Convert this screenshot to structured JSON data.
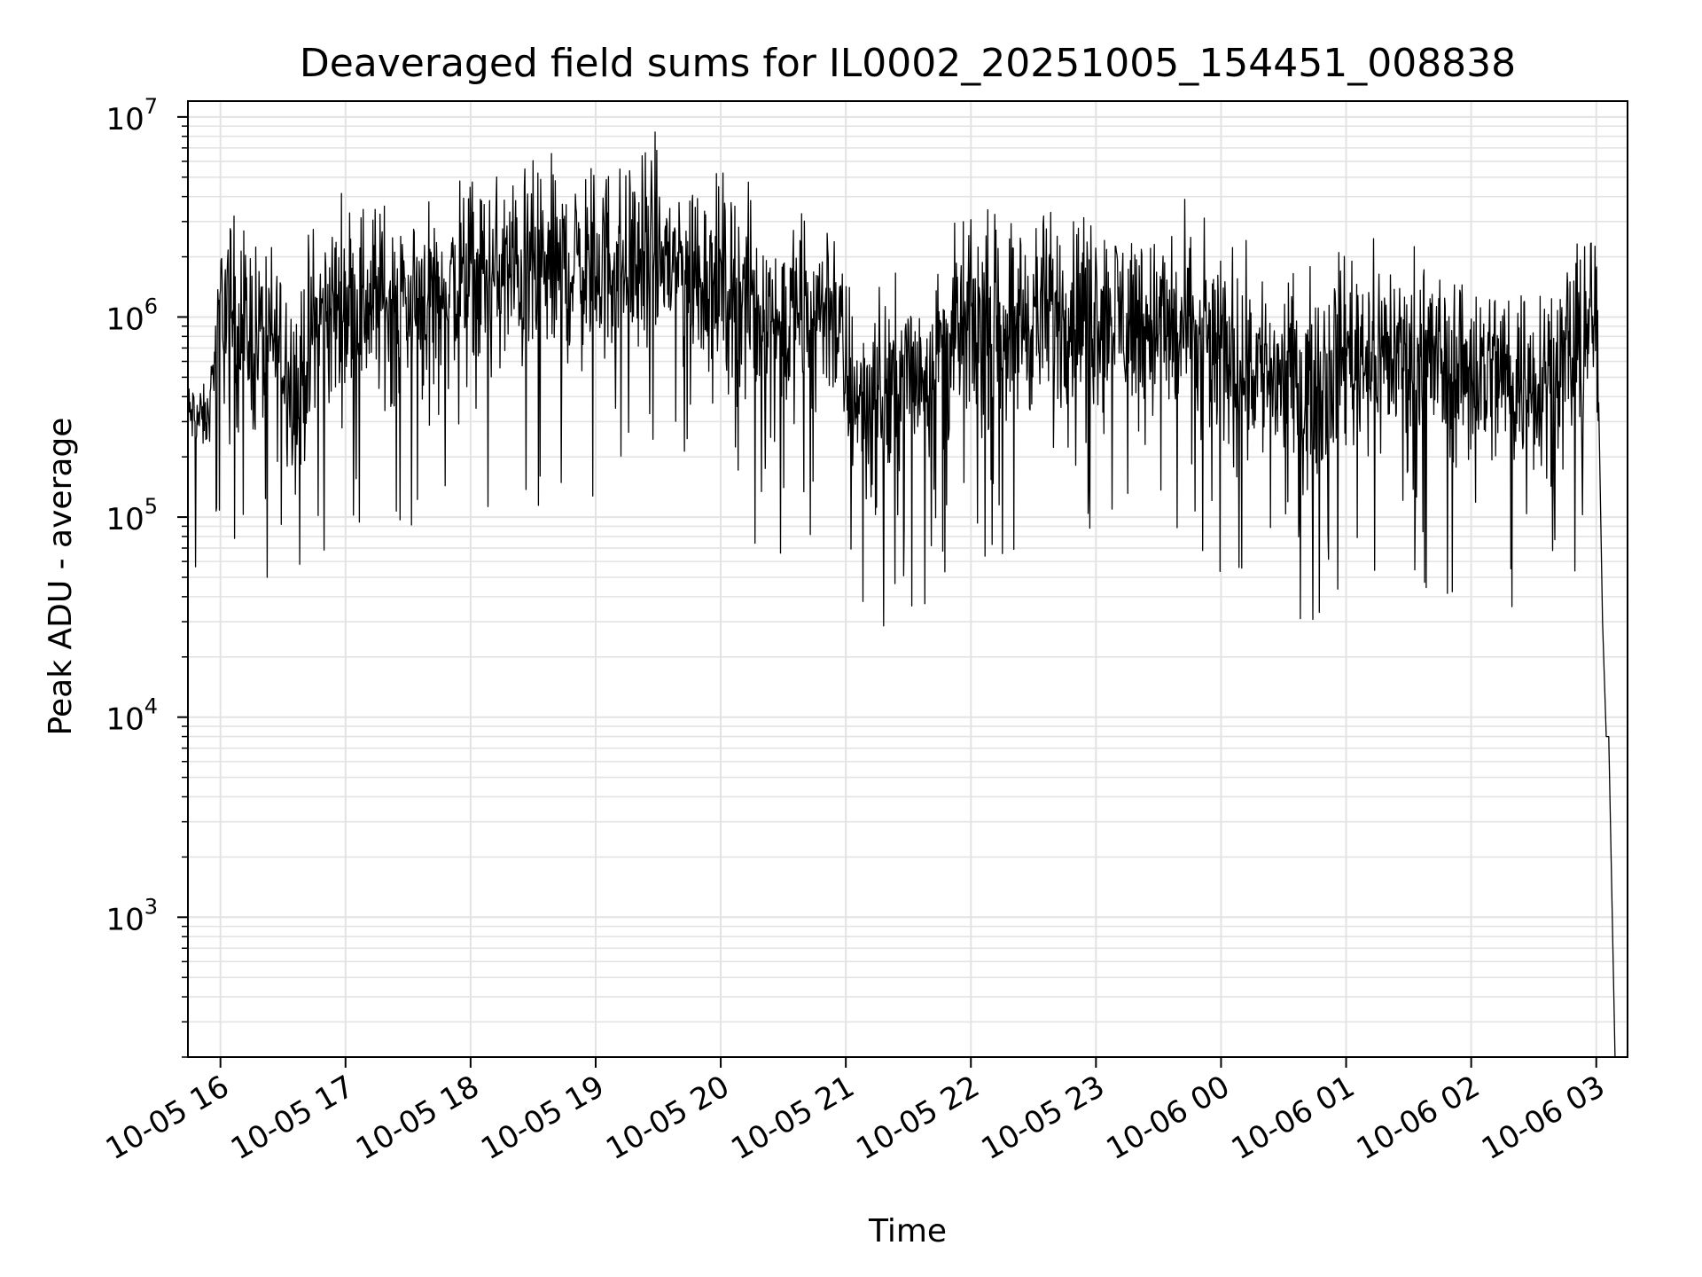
{
  "chart_data": {
    "type": "line",
    "title": "Deaveraged field sums for IL0002_20251005_154451_008838",
    "xlabel": "Time",
    "ylabel": "Peak ADU - average",
    "yscale": "log",
    "ylim": [
      200,
      12000000
    ],
    "xlim_hours": [
      -0.26,
      11.25
    ],
    "grid": true,
    "line_color": "#000000",
    "y_ticks": [
      {
        "value": 1000,
        "base": "10",
        "exp": "3"
      },
      {
        "value": 10000,
        "base": "10",
        "exp": "4"
      },
      {
        "value": 100000,
        "base": "10",
        "exp": "5"
      },
      {
        "value": 1000000,
        "base": "10",
        "exp": "6"
      },
      {
        "value": 10000000,
        "base": "10",
        "exp": "7"
      }
    ],
    "x_ticks": [
      {
        "hour": 0,
        "label": "10-05 16"
      },
      {
        "hour": 1,
        "label": "10-05 17"
      },
      {
        "hour": 2,
        "label": "10-05 18"
      },
      {
        "hour": 3,
        "label": "10-05 19"
      },
      {
        "hour": 4,
        "label": "10-05 20"
      },
      {
        "hour": 5,
        "label": "10-05 21"
      },
      {
        "hour": 6,
        "label": "10-05 22"
      },
      {
        "hour": 7,
        "label": "10-05 23"
      },
      {
        "hour": 8,
        "label": "10-06 00"
      },
      {
        "hour": 9,
        "label": "10-06 01"
      },
      {
        "hour": 10,
        "label": "10-06 02"
      },
      {
        "hour": 11,
        "label": "10-06 03"
      }
    ],
    "series": [
      {
        "name": "field sums",
        "x_unit": "hours since 10-05 16:00",
        "x": [
          -0.26,
          -0.1,
          0.0,
          0.25,
          0.5,
          0.62,
          0.75,
          1.0,
          1.5,
          2.0,
          2.5,
          3.0,
          3.5,
          4.0,
          4.5,
          4.9,
          5.0,
          5.2,
          5.5,
          6.0,
          6.5,
          7.0,
          7.5,
          8.0,
          8.5,
          8.7,
          9.0,
          9.5,
          10.0,
          10.5,
          10.9,
          11.0,
          11.05,
          11.1,
          11.15
        ],
        "y": [
          330000,
          300000,
          1200000,
          800000,
          700000,
          400000,
          900000,
          1200000,
          1200000,
          1500000,
          1700000,
          1800000,
          2000000,
          1500000,
          900000,
          1200000,
          500000,
          350000,
          500000,
          900000,
          1000000,
          1100000,
          900000,
          700000,
          500000,
          450000,
          700000,
          650000,
          550000,
          500000,
          700000,
          1200000,
          30000,
          8000,
          200
        ],
        "noise_decades": 0.45
      }
    ]
  }
}
